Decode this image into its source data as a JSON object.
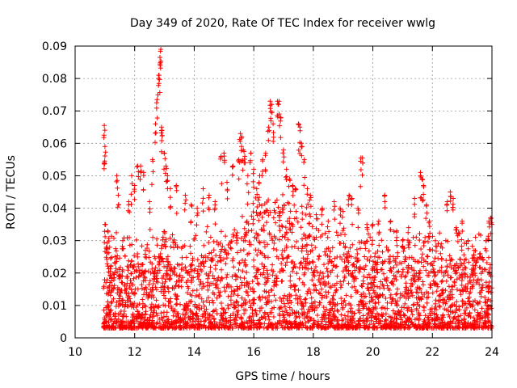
{
  "chart_data": {
    "type": "scatter",
    "title": "Day 349 of 2020, Rate Of TEC Index for receiver wwlg",
    "xlabel": "GPS time / hours",
    "ylabel": "ROTI / TECUs",
    "xlim": [
      10,
      24
    ],
    "ylim": [
      0,
      0.09
    ],
    "x_ticks": [
      10,
      12,
      14,
      16,
      18,
      20,
      22,
      24
    ],
    "x_tick_labels": [
      "10",
      "12",
      "14",
      "16",
      "18",
      "20",
      "22",
      "24"
    ],
    "y_ticks": [
      0,
      0.01,
      0.02,
      0.03,
      0.04,
      0.05,
      0.06,
      0.07,
      0.08,
      0.09
    ],
    "y_tick_labels": [
      "0",
      "0.01",
      "0.02",
      "0.03",
      "0.04",
      "0.05",
      "0.06",
      "0.07",
      "0.08",
      "0.09"
    ],
    "grid": true,
    "marker": "+",
    "marker_color": "#ff0000",
    "data_time_range": [
      10.95,
      24.0
    ],
    "series": [
      {
        "name": "ROTI",
        "points": [
          [
            10.98,
            0.0655
          ],
          [
            11.0,
            0.059
          ],
          [
            10.98,
            0.054
          ],
          [
            11.0,
            0.035
          ],
          [
            11.05,
            0.028
          ],
          [
            11.1,
            0.033
          ],
          [
            11.2,
            0.022
          ],
          [
            11.4,
            0.05
          ],
          [
            11.45,
            0.044
          ],
          [
            11.6,
            0.03
          ],
          [
            11.8,
            0.042
          ],
          [
            11.9,
            0.05
          ],
          [
            12.0,
            0.047
          ],
          [
            12.1,
            0.053
          ],
          [
            12.2,
            0.053
          ],
          [
            12.3,
            0.051
          ],
          [
            12.5,
            0.042
          ],
          [
            12.6,
            0.055
          ],
          [
            12.7,
            0.066
          ],
          [
            12.75,
            0.0735
          ],
          [
            12.8,
            0.08
          ],
          [
            12.82,
            0.081
          ],
          [
            12.85,
            0.0865
          ],
          [
            12.88,
            0.089
          ],
          [
            12.9,
            0.065
          ],
          [
            12.92,
            0.064
          ],
          [
            13.0,
            0.057
          ],
          [
            13.05,
            0.053
          ],
          [
            13.1,
            0.05
          ],
          [
            13.2,
            0.046
          ],
          [
            13.4,
            0.047
          ],
          [
            13.7,
            0.044
          ],
          [
            13.9,
            0.041
          ],
          [
            14.1,
            0.04
          ],
          [
            14.3,
            0.046
          ],
          [
            14.5,
            0.044
          ],
          [
            14.7,
            0.042
          ],
          [
            14.9,
            0.056
          ],
          [
            15.0,
            0.057
          ],
          [
            15.1,
            0.048
          ],
          [
            15.3,
            0.053
          ],
          [
            15.5,
            0.055
          ],
          [
            15.55,
            0.063
          ],
          [
            15.6,
            0.062
          ],
          [
            15.65,
            0.058
          ],
          [
            15.7,
            0.056
          ],
          [
            15.8,
            0.05
          ],
          [
            15.9,
            0.057
          ],
          [
            16.0,
            0.052
          ],
          [
            16.1,
            0.046
          ],
          [
            16.2,
            0.05
          ],
          [
            16.3,
            0.055
          ],
          [
            16.4,
            0.057
          ],
          [
            16.5,
            0.065
          ],
          [
            16.55,
            0.073
          ],
          [
            16.6,
            0.072
          ],
          [
            16.65,
            0.066
          ],
          [
            16.8,
            0.073
          ],
          [
            16.85,
            0.073
          ],
          [
            16.9,
            0.068
          ],
          [
            17.0,
            0.058
          ],
          [
            17.1,
            0.052
          ],
          [
            17.2,
            0.049
          ],
          [
            17.3,
            0.047
          ],
          [
            17.4,
            0.046
          ],
          [
            17.5,
            0.066
          ],
          [
            17.55,
            0.065
          ],
          [
            17.6,
            0.06
          ],
          [
            17.7,
            0.055
          ],
          [
            17.8,
            0.046
          ],
          [
            17.9,
            0.044
          ],
          [
            18.1,
            0.038
          ],
          [
            18.3,
            0.04
          ],
          [
            18.5,
            0.036
          ],
          [
            18.7,
            0.042
          ],
          [
            18.9,
            0.04
          ],
          [
            19.0,
            0.039
          ],
          [
            19.2,
            0.044
          ],
          [
            19.3,
            0.043
          ],
          [
            19.5,
            0.04
          ],
          [
            19.6,
            0.0555
          ],
          [
            19.65,
            0.0555
          ],
          [
            19.8,
            0.035
          ],
          [
            20.0,
            0.035
          ],
          [
            20.2,
            0.036
          ],
          [
            20.4,
            0.044
          ],
          [
            20.6,
            0.036
          ],
          [
            20.8,
            0.033
          ],
          [
            21.0,
            0.03
          ],
          [
            21.2,
            0.034
          ],
          [
            21.4,
            0.043
          ],
          [
            21.6,
            0.051
          ],
          [
            21.65,
            0.049
          ],
          [
            21.7,
            0.047
          ],
          [
            21.8,
            0.041
          ],
          [
            21.9,
            0.036
          ],
          [
            22.1,
            0.03
          ],
          [
            22.3,
            0.029
          ],
          [
            22.5,
            0.042
          ],
          [
            22.6,
            0.045
          ],
          [
            22.7,
            0.043
          ],
          [
            22.8,
            0.034
          ],
          [
            23.0,
            0.036
          ],
          [
            23.2,
            0.03
          ],
          [
            23.4,
            0.027
          ],
          [
            23.6,
            0.026
          ],
          [
            23.8,
            0.03
          ],
          [
            23.9,
            0.036
          ],
          [
            23.95,
            0.037
          ],
          [
            24.0,
            0.035
          ]
        ]
      }
    ],
    "typical_baseline": "dense cluster between 0.003 and 0.025 TECUs across 11–24 h, highest around 15.5–17.5 h"
  }
}
